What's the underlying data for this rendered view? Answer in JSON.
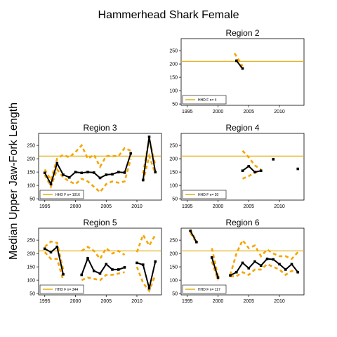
{
  "title": "Hammerhead Shark Female",
  "ylabel": "Median Upper Jaw-Fork Length",
  "colors": {
    "line": "#000000",
    "ci": "#F5A500",
    "ref": "#E0A800"
  },
  "chart_data": [
    {
      "type": "line",
      "title": "Region 2",
      "legend": "HHD F n= 4",
      "xlim": [
        1994,
        2014
      ],
      "ylim": [
        45,
        295
      ],
      "xticks": [
        1995,
        2000,
        2005,
        2010
      ],
      "yticks": [
        50,
        100,
        150,
        200,
        250
      ],
      "show_x_tick_labels": true,
      "reference_y": 210,
      "series": [
        {
          "x": [
            2003,
            2004
          ],
          "y": [
            212,
            183
          ]
        }
      ],
      "ci_upper": [
        {
          "x": [
            2002.7,
            2004
          ],
          "y": [
            240,
            192
          ]
        }
      ],
      "ci_lower": [
        {
          "x": [
            2003,
            2004
          ],
          "y": [
            218,
            180
          ]
        }
      ],
      "points": []
    },
    {
      "type": "line",
      "title": "Region 3",
      "legend": "HHD F n= 1016",
      "xlim": [
        1994,
        2014
      ],
      "ylim": [
        45,
        295
      ],
      "xticks": [
        1995,
        2000,
        2005,
        2010
      ],
      "yticks": [
        50,
        100,
        150,
        200,
        250
      ],
      "show_x_tick_labels": true,
      "reference_y": 210,
      "series": [
        {
          "x": [
            1995,
            1996,
            1997,
            1998,
            1999,
            2000,
            2001,
            2002,
            2003,
            2004,
            2005,
            2006,
            2007,
            2008,
            2009
          ],
          "y": [
            147,
            105,
            183,
            140,
            130,
            150,
            147,
            150,
            148,
            128,
            140,
            142,
            150,
            148,
            220
          ]
        },
        {
          "x": [
            2011,
            2012,
            2013
          ],
          "y": [
            120,
            282,
            150
          ]
        }
      ],
      "ci_upper": [
        {
          "x": [
            1995,
            1996,
            1997,
            1998,
            1999,
            2000,
            2001,
            2002,
            2003,
            2004,
            2005,
            2006,
            2007,
            2008,
            2009
          ],
          "y": [
            160,
            120,
            200,
            215,
            205,
            225,
            250,
            200,
            215,
            170,
            210,
            210,
            210,
            240,
            230
          ]
        },
        {
          "x": [
            2011,
            2012,
            2013
          ],
          "y": [
            145,
            275,
            175
          ]
        }
      ],
      "ci_lower": [
        {
          "x": [
            1995,
            1996,
            1997,
            1998,
            1999,
            2000,
            2001,
            2002,
            2003,
            2004,
            2005,
            2006,
            2007,
            2008,
            2009
          ],
          "y": [
            140,
            95,
            160,
            130,
            115,
            105,
            125,
            115,
            95,
            75,
            105,
            115,
            110,
            115,
            200
          ]
        },
        {
          "x": [
            2011,
            2012,
            2013
          ],
          "y": [
            115,
            210,
            145
          ]
        }
      ],
      "points": []
    },
    {
      "type": "line",
      "title": "Region 4",
      "legend": "HHD F n= 20",
      "xlim": [
        1994,
        2014
      ],
      "ylim": [
        45,
        295
      ],
      "xticks": [
        1995,
        2000,
        2005,
        2010
      ],
      "yticks": [
        50,
        100,
        150,
        200,
        250
      ],
      "show_x_tick_labels": true,
      "reference_y": 210,
      "series": [
        {
          "x": [
            2004,
            2005,
            2006,
            2007
          ],
          "y": [
            155,
            172,
            150,
            155
          ]
        }
      ],
      "ci_upper": [
        {
          "x": [
            2004,
            2005,
            2006,
            2007
          ],
          "y": [
            230,
            205,
            175,
            160
          ]
        }
      ],
      "ci_lower": [
        {
          "x": [
            2004,
            2005,
            2006,
            2007
          ],
          "y": [
            125,
            135,
            148,
            155
          ]
        }
      ],
      "points": [
        {
          "x": 2009,
          "y": 198
        },
        {
          "x": 2013,
          "y": 162
        }
      ]
    },
    {
      "type": "line",
      "title": "Region 5",
      "legend": "HHD F n= 344",
      "xlim": [
        1994,
        2014
      ],
      "ylim": [
        45,
        295
      ],
      "xticks": [
        1995,
        2000,
        2005,
        2010
      ],
      "yticks": [
        50,
        100,
        150,
        200,
        250
      ],
      "show_x_tick_labels": true,
      "reference_y": 210,
      "series": [
        {
          "x": [
            1995,
            1996,
            1997,
            1998
          ],
          "y": [
            218,
            205,
            225,
            122
          ]
        },
        {
          "x": [
            2001,
            2002,
            2003,
            2004,
            2005,
            2006,
            2007,
            2008
          ],
          "y": [
            120,
            182,
            135,
            125,
            160,
            140,
            140,
            148
          ]
        },
        {
          "x": [
            2010,
            2011,
            2012,
            2013
          ],
          "y": [
            165,
            158,
            70,
            170
          ]
        }
      ],
      "ci_upper": [
        {
          "x": [
            1995,
            1996,
            1997,
            1998
          ],
          "y": [
            225,
            245,
            240,
            140
          ]
        },
        {
          "x": [
            2001,
            2002,
            2003,
            2004,
            2005,
            2006,
            2007,
            2008
          ],
          "y": [
            210,
            225,
            210,
            180,
            220,
            200,
            210,
            195
          ]
        },
        {
          "x": [
            2010,
            2011,
            2012,
            2013
          ],
          "y": [
            205,
            270,
            230,
            270
          ]
        }
      ],
      "ci_lower": [
        {
          "x": [
            1995,
            1996,
            1997,
            1998
          ],
          "y": [
            205,
            180,
            180,
            100
          ]
        },
        {
          "x": [
            2001,
            2002,
            2003,
            2004,
            2005,
            2006,
            2007,
            2008
          ],
          "y": [
            100,
            110,
            105,
            100,
            120,
            120,
            125,
            130
          ]
        },
        {
          "x": [
            2010,
            2011,
            2012,
            2013
          ],
          "y": [
            150,
            90,
            60,
            120
          ]
        }
      ],
      "points": []
    },
    {
      "type": "line",
      "title": "Region 6",
      "legend": "HHD F n= 117",
      "xlim": [
        1994,
        2014
      ],
      "ylim": [
        45,
        295
      ],
      "xticks": [
        1995,
        2000,
        2005,
        2010
      ],
      "yticks": [
        50,
        100,
        150,
        200,
        250
      ],
      "show_x_tick_labels": true,
      "reference_y": 210,
      "series": [
        {
          "x": [
            1995.5,
            1996.5
          ],
          "y": [
            285,
            243
          ]
        },
        {
          "x": [
            1999,
            2000
          ],
          "y": [
            185,
            110
          ]
        },
        {
          "x": [
            2002,
            2003,
            2004,
            2005,
            2006,
            2007,
            2008,
            2009,
            2010,
            2011,
            2012,
            2013
          ],
          "y": [
            118,
            130,
            165,
            145,
            170,
            155,
            180,
            178,
            160,
            140,
            160,
            130
          ]
        }
      ],
      "ci_upper": [
        {
          "x": [
            1995.5,
            1996.5
          ],
          "y": [
            290,
            245
          ]
        },
        {
          "x": [
            1999,
            2000
          ],
          "y": [
            220,
            115
          ]
        },
        {
          "x": [
            2002,
            2003,
            2004,
            2005,
            2006,
            2007,
            2008,
            2009,
            2010,
            2011,
            2012,
            2013
          ],
          "y": [
            120,
            200,
            250,
            220,
            230,
            190,
            215,
            200,
            190,
            190,
            180,
            205
          ]
        }
      ],
      "ci_lower": [
        {
          "x": [
            1995.5,
            1996.5
          ],
          "y": [
            278,
            240
          ]
        },
        {
          "x": [
            1999,
            2000
          ],
          "y": [
            170,
            100
          ]
        },
        {
          "x": [
            2002,
            2003,
            2004,
            2005,
            2006,
            2007,
            2008,
            2009,
            2010,
            2011,
            2012,
            2013
          ],
          "y": [
            115,
            115,
            130,
            120,
            140,
            140,
            160,
            150,
            140,
            120,
            135,
            130
          ]
        }
      ],
      "points": []
    }
  ]
}
